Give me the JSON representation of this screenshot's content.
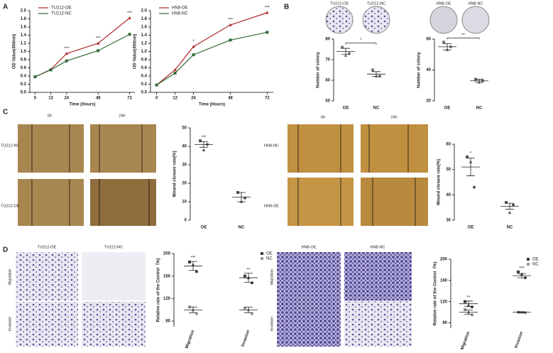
{
  "panel_labels": [
    "A",
    "B",
    "C",
    "D"
  ],
  "images": {
    "b_cols": [
      "TU212-OE",
      "TU212-NC",
      "HN8-OE",
      "HN8-NC"
    ],
    "c_time": [
      "0h",
      "24h",
      "0h",
      "24h"
    ],
    "c_rows": [
      "TU212-NC",
      "TU212-OE",
      "HN8-NC",
      "HN8-OE"
    ],
    "d_cols": [
      "TU212-OE",
      "TU212-NC",
      "HN8-OE",
      "HN8-NC"
    ],
    "d_rows": [
      "Migration",
      "Invasion",
      "Migration",
      "Invasion"
    ]
  },
  "chart_data": [
    {
      "type": "line",
      "xlabel": "Time (Hours)",
      "ylabel": "OD Value(450nm)",
      "x": [
        0,
        12,
        24,
        48,
        72
      ],
      "xlim": [
        -4,
        76
      ],
      "xticks": [
        0,
        12,
        24,
        48,
        72
      ],
      "ylim": [
        0,
        2.0
      ],
      "yticks": [
        {
          "value": 0,
          "label": "0.0"
        },
        0.2,
        0.4,
        0.6,
        0.8,
        {
          "value": 1,
          "label": "1.0"
        },
        1.2,
        1.4,
        1.6,
        1.8,
        {
          "value": 2,
          "label": "2.0"
        }
      ],
      "series": [
        {
          "name": "TU212-OE",
          "color": "#b0282a",
          "values": [
            0.38,
            0.56,
            0.95,
            1.2,
            1.82
          ]
        },
        {
          "name": "TU212-NC",
          "color": "#2e6b35",
          "values": [
            0.38,
            0.55,
            0.77,
            1.02,
            1.42
          ]
        }
      ],
      "annotations": [
        {
          "text": "***",
          "x": 24
        },
        {
          "text": "***",
          "x": 48
        },
        {
          "text": "***",
          "x": 72
        }
      ]
    },
    {
      "type": "line",
      "xlabel": "Time (Hours)",
      "ylabel": "OD Value(450nm)",
      "x": [
        0,
        12,
        24,
        48,
        72
      ],
      "xlim": [
        -4,
        76
      ],
      "xticks": [
        0,
        12,
        24,
        48,
        72
      ],
      "ylim": [
        0,
        2.0
      ],
      "yticks": [
        {
          "value": 0,
          "label": "0.0"
        },
        0.2,
        0.4,
        0.6,
        0.8,
        {
          "value": 1,
          "label": "1.0"
        },
        1.2,
        1.4,
        1.6,
        1.8,
        {
          "value": 2,
          "label": "2.0"
        }
      ],
      "series": [
        {
          "name": "HN8-OE",
          "color": "#b0282a",
          "values": [
            0.18,
            0.55,
            1.12,
            1.65,
            1.95
          ]
        },
        {
          "name": "HN8-NC",
          "color": "#2e6b35",
          "values": [
            0.18,
            0.47,
            0.92,
            1.28,
            1.47
          ]
        }
      ],
      "annotations": [
        {
          "text": "*",
          "x": 24
        },
        {
          "text": "***",
          "x": 48
        },
        {
          "text": "***",
          "x": 72
        }
      ]
    },
    {
      "type": "dot",
      "ylabel": "Number of colony",
      "categories": [
        "OE",
        "NC"
      ],
      "ylim": [
        50,
        80
      ],
      "yticks": [
        50,
        60,
        70,
        80
      ],
      "color": "#777777",
      "values": [
        [
          76,
          72,
          73
        ],
        [
          65,
          62,
          62
        ]
      ],
      "means": [
        74,
        63
      ],
      "errors": [
        1.5,
        1.2
      ],
      "annotations": [
        {
          "text": "*"
        }
      ]
    },
    {
      "type": "dot",
      "ylabel": "Number of colony",
      "categories": [
        "OE",
        "NC"
      ],
      "ylim": [
        20,
        60
      ],
      "yticks": [
        20,
        40,
        60
      ],
      "color": "#777777",
      "values": [
        [
          58,
          53,
          55
        ],
        [
          34,
          32,
          33
        ]
      ],
      "means": [
        55,
        33
      ],
      "errors": [
        2,
        1
      ],
      "annotations": [
        {
          "text": "**"
        }
      ]
    },
    {
      "type": "dot",
      "ylabel": "Wound closure rate(%)",
      "categories": [
        "OE",
        "NC"
      ],
      "ylim": [
        0,
        50
      ],
      "yticks": [
        0,
        10,
        20,
        30,
        40,
        50
      ],
      "color": "#555555",
      "values": [
        [
          43,
          38,
          41
        ],
        [
          15,
          10,
          12
        ]
      ],
      "means": [
        41,
        12.5
      ],
      "errors": [
        1.5,
        2.5
      ],
      "annotations": [
        {
          "text": "***",
          "category": "OE"
        }
      ]
    },
    {
      "type": "dot",
      "ylabel": "Wound closure rate(%)",
      "categories": [
        "OE",
        "NC"
      ],
      "ylim": [
        30,
        60
      ],
      "yticks": [
        30,
        40,
        50,
        60
      ],
      "color": "#555555",
      "values": [
        [
          55,
          53,
          43
        ],
        [
          37,
          33,
          36
        ]
      ],
      "means": [
        51,
        35.5
      ],
      "errors": [
        3.5,
        1.2
      ],
      "annotations": [
        {
          "text": "*",
          "category": "OE"
        }
      ]
    },
    {
      "type": "dot",
      "ylabel": "Relative rate of the Control（%)",
      "categories": [
        "Migration",
        "Invasion"
      ],
      "ylim": [
        70,
        200
      ],
      "yticks": [
        80,
        120,
        160,
        200
      ],
      "series": [
        {
          "name": "OE",
          "color": "#3a3a3a",
          "values": [
            [
              185,
              180,
              168
            ],
            [
              160,
              157,
              148
            ]
          ],
          "means": [
            178,
            157
          ],
          "errors": [
            8,
            8
          ]
        },
        {
          "name": "NC",
          "color": "#999999",
          "values": [
            [
              105,
              100,
              93
            ],
            [
              103,
              100,
              93
            ]
          ],
          "means": [
            100,
            100
          ],
          "errors": [
            5,
            5
          ]
        }
      ],
      "annotations": [
        {
          "text": "***",
          "category": "Migration"
        },
        {
          "text": "**",
          "category": "Invasion"
        }
      ]
    },
    {
      "type": "dot",
      "ylabel": "Relative rate of the Control（%)",
      "categories": [
        "Migration",
        "Invasion"
      ],
      "ylim": [
        70,
        200
      ],
      "yticks": [
        80,
        120,
        160,
        200
      ],
      "series": [
        {
          "name": "OE",
          "color": "#3a3a3a",
          "values": [
            [
              120,
              113,
              110
            ],
            [
              176,
              172,
              165
            ]
          ],
          "means": [
            116,
            169
          ],
          "errors": [
            5,
            4
          ]
        },
        {
          "name": "NC",
          "color": "#999999",
          "values": [
            [
              105,
              100,
              95
            ],
            [
              100,
              100,
              99
            ]
          ],
          "means": [
            100,
            100
          ],
          "errors": [
            4,
            1
          ]
        }
      ],
      "annotations": [
        {
          "text": "**",
          "category": "Migration"
        },
        {
          "text": "***",
          "category": "Invasion"
        }
      ]
    }
  ]
}
